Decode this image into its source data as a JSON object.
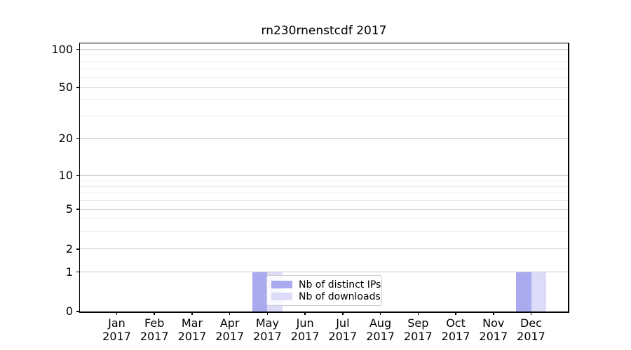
{
  "chart_data": {
    "type": "bar",
    "title": "rn230rnenstcdf 2017",
    "categories": [
      "Jan",
      "Feb",
      "Mar",
      "Apr",
      "May",
      "Jun",
      "Jul",
      "Aug",
      "Sep",
      "Oct",
      "Nov",
      "Dec"
    ],
    "year_label": "2017",
    "series": [
      {
        "name": "Nb of distinct IPs",
        "color": "#aaaaf0",
        "values": [
          0,
          0,
          0,
          0,
          1,
          0,
          0,
          0,
          0,
          0,
          0,
          1
        ]
      },
      {
        "name": "Nb of downloads",
        "color": "#dcdcf8",
        "values": [
          0,
          0,
          0,
          0,
          1,
          0,
          0,
          0,
          0,
          0,
          0,
          1
        ]
      }
    ],
    "y_axis": {
      "scale": "symlog",
      "ylim": [
        0,
        110
      ],
      "ticks": [
        {
          "label": "0",
          "value": 0,
          "f": 0.0
        },
        {
          "label": "1",
          "value": 1,
          "f": 0.1475
        },
        {
          "label": "2",
          "value": 2,
          "f": 0.2324
        },
        {
          "label": "5",
          "value": 5,
          "f": 0.3812
        },
        {
          "label": "10",
          "value": 10,
          "f": 0.5073
        },
        {
          "label": "20",
          "value": 20,
          "f": 0.6457
        },
        {
          "label": "50",
          "value": 50,
          "f": 0.8355
        },
        {
          "label": "100",
          "value": 100,
          "f": 0.9773
        }
      ],
      "minor_gridlines": [
        {
          "value": 3,
          "f": 0.2983
        },
        {
          "value": 4,
          "f": 0.3449
        },
        {
          "value": 6,
          "f": 0.4144
        },
        {
          "value": 7,
          "f": 0.4424
        },
        {
          "value": 8,
          "f": 0.4667
        },
        {
          "value": 9,
          "f": 0.4881
        },
        {
          "value": 30,
          "f": 0.7297
        },
        {
          "value": 40,
          "f": 0.7892
        },
        {
          "value": 60,
          "f": 0.8728
        },
        {
          "value": 70,
          "f": 0.9043
        },
        {
          "value": 80,
          "f": 0.9317
        },
        {
          "value": 90,
          "f": 0.9558
        }
      ]
    },
    "grid": "horizontal",
    "legend": {
      "position": "lower center-left",
      "entries": [
        "Nb of distinct IPs",
        "Nb of downloads"
      ]
    }
  }
}
